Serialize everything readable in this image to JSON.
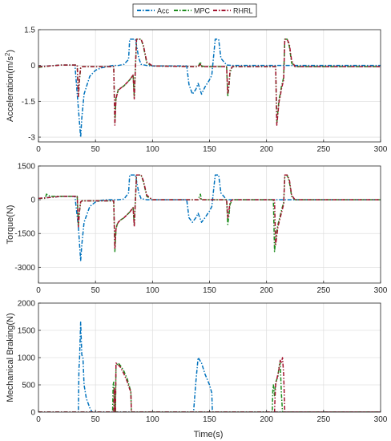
{
  "legend": {
    "items": [
      {
        "label": "Acc",
        "color": "#0072BD",
        "dash": "5,2,1.5,2"
      },
      {
        "label": "MPC",
        "color": "#1E8C1E",
        "dash": "5,2,1.5,2"
      },
      {
        "label": "RHRL",
        "color": "#A2142F",
        "dash": "5,2,1.5,2"
      }
    ]
  },
  "xlabel": "Time(s)",
  "chart_data": [
    {
      "type": "line",
      "title": "",
      "xlabel": "",
      "ylabel": "Acceleration(m/s²)",
      "ylabel_main": "Acceleration(m/s",
      "ylabel_sup": "2",
      "ylabel_tail": ")",
      "xlim": [
        0,
        300
      ],
      "ylim": [
        -3.2,
        1.5
      ],
      "xticks": [
        0,
        50,
        100,
        150,
        200,
        250,
        300
      ],
      "yticks": [
        -3,
        -1.5,
        0,
        1.5
      ],
      "ytick_labels": [
        "-3",
        "-1.5",
        "0",
        "1.5"
      ],
      "grid": true,
      "series": [
        {
          "name": "Acc",
          "x": [
            0,
            20,
            32,
            35,
            37,
            38,
            40,
            45,
            50,
            55,
            60,
            65,
            70,
            75,
            79,
            80,
            82,
            85,
            88,
            90,
            95,
            100,
            110,
            125,
            130,
            132,
            135,
            138,
            140,
            143,
            146,
            150,
            152,
            155,
            158,
            160,
            165,
            170,
            175,
            200,
            300
          ],
          "y": [
            -0.05,
            0.02,
            0.02,
            -1.8,
            -3.0,
            -2.2,
            -1.2,
            -0.45,
            -0.2,
            -0.1,
            -0.05,
            0,
            0,
            0.05,
            0.25,
            1.1,
            1.1,
            1.1,
            0.3,
            0.05,
            0,
            -0.02,
            -0.02,
            -0.02,
            -0.02,
            -0.8,
            -1.2,
            -1.0,
            -0.75,
            -1.2,
            -0.9,
            -0.6,
            -0.4,
            1.1,
            1.1,
            0.3,
            0.02,
            0,
            0,
            0,
            0
          ]
        },
        {
          "name": "MPC",
          "x": [
            0,
            10,
            20,
            30,
            34,
            35,
            36,
            37,
            38,
            40,
            60,
            66,
            67,
            68,
            69,
            70,
            72,
            75,
            78,
            80,
            83,
            84,
            86,
            90,
            92,
            95,
            100,
            140,
            142,
            143,
            146,
            150,
            160,
            165,
            166,
            167,
            168,
            170,
            172,
            175,
            180,
            200,
            208,
            209,
            210,
            211,
            212,
            213,
            214,
            215,
            216,
            218,
            220,
            222,
            225,
            235,
            300
          ],
          "y": [
            -0.08,
            -0.02,
            0.02,
            0.02,
            0.02,
            -1.3,
            -0.6,
            -0.1,
            -0.05,
            -0.05,
            -0.05,
            -0.05,
            -2.4,
            -1.3,
            -1.2,
            -1.0,
            -0.95,
            -0.85,
            -0.7,
            -0.6,
            -0.4,
            -1.3,
            1.1,
            1.1,
            0.8,
            0.1,
            -0.02,
            -0.05,
            0.15,
            -0.02,
            -0.05,
            -0.05,
            -0.05,
            -0.05,
            -1.3,
            -0.9,
            -0.3,
            -0.05,
            -0.05,
            -0.05,
            -0.05,
            -0.05,
            -0.05,
            -2.4,
            -1.9,
            -1.4,
            -1.2,
            -0.9,
            -0.7,
            -0.5,
            1.1,
            1.1,
            0.8,
            0.1,
            -0.05,
            -0.05,
            -0.05
          ]
        },
        {
          "name": "RHRL",
          "x": [
            0,
            10,
            20,
            30,
            34,
            35,
            36,
            37,
            38,
            40,
            60,
            66,
            67,
            68,
            69,
            70,
            72,
            75,
            78,
            80,
            83,
            84,
            86,
            90,
            92,
            95,
            100,
            140,
            142,
            143,
            146,
            150,
            160,
            165,
            166,
            167,
            168,
            170,
            172,
            175,
            180,
            200,
            208,
            209,
            210,
            211,
            212,
            213,
            214,
            215,
            216,
            218,
            220,
            222,
            225,
            235,
            300
          ],
          "y": [
            -0.05,
            -0.02,
            0.02,
            0.02,
            0.02,
            -1.3,
            -0.5,
            -0.1,
            -0.05,
            -0.05,
            -0.05,
            -0.05,
            -2.5,
            -1.4,
            -1.2,
            -1.05,
            -0.95,
            -0.85,
            -0.7,
            -0.6,
            -0.4,
            -1.4,
            1.1,
            1.1,
            0.85,
            0.15,
            -0.02,
            -0.05,
            0.05,
            -0.05,
            -0.05,
            -0.05,
            -0.05,
            -0.05,
            -1.2,
            -0.8,
            -0.2,
            -0.05,
            -0.05,
            -0.05,
            -0.05,
            -0.05,
            -0.05,
            -2.5,
            -2.0,
            -1.5,
            -1.3,
            -1.0,
            -0.8,
            -0.6,
            1.1,
            1.1,
            0.9,
            0.2,
            -0.05,
            -0.05,
            -0.05
          ]
        }
      ]
    },
    {
      "type": "line",
      "title": "",
      "xlabel": "",
      "ylabel": "Torque(N)",
      "xlim": [
        0,
        300
      ],
      "ylim": [
        -3700,
        1500
      ],
      "xticks": [
        0,
        50,
        100,
        150,
        200,
        250,
        300
      ],
      "yticks": [
        -3000,
        -1500,
        0,
        1500
      ],
      "ytick_labels": [
        "-3000",
        "-1500",
        "0",
        "1500"
      ],
      "grid": true,
      "series": [
        {
          "name": "Acc",
          "x": [
            0,
            20,
            32,
            35,
            37,
            38,
            40,
            45,
            50,
            55,
            60,
            65,
            70,
            75,
            79,
            80,
            82,
            85,
            88,
            90,
            95,
            100,
            110,
            125,
            130,
            132,
            135,
            138,
            140,
            143,
            146,
            150,
            152,
            155,
            158,
            160,
            165,
            170,
            175,
            200,
            300
          ],
          "y": [
            60,
            150,
            150,
            -1200,
            -2700,
            -2000,
            -1000,
            -300,
            -100,
            -30,
            0,
            0,
            0,
            30,
            300,
            1100,
            1100,
            1100,
            300,
            50,
            0,
            0,
            0,
            0,
            0,
            -800,
            -1000,
            -800,
            -600,
            -1000,
            -800,
            -500,
            -300,
            1100,
            1100,
            300,
            0,
            0,
            0,
            0,
            0
          ]
        },
        {
          "name": "MPC",
          "x": [
            0,
            6,
            7,
            9,
            10,
            20,
            30,
            34,
            35,
            36,
            37,
            38,
            40,
            60,
            66,
            67,
            68,
            69,
            70,
            72,
            75,
            78,
            80,
            83,
            84,
            86,
            90,
            92,
            95,
            100,
            140,
            142,
            143,
            146,
            150,
            160,
            165,
            166,
            167,
            168,
            170,
            172,
            175,
            180,
            200,
            206,
            207,
            208,
            209,
            210,
            211,
            212,
            213,
            214,
            215,
            216,
            218,
            220,
            222,
            225,
            235,
            300
          ],
          "y": [
            60,
            60,
            250,
            200,
            150,
            150,
            150,
            150,
            -1100,
            -500,
            -100,
            -50,
            -50,
            -50,
            -50,
            -2300,
            -1300,
            -1100,
            -1000,
            -900,
            -800,
            -650,
            -550,
            -350,
            -1100,
            1100,
            1100,
            800,
            150,
            0,
            0,
            250,
            0,
            0,
            0,
            0,
            0,
            -1100,
            -700,
            -200,
            0,
            0,
            0,
            0,
            0,
            0,
            -2300,
            -1800,
            -1400,
            -1100,
            -900,
            -700,
            -500,
            -300,
            -150,
            1000,
            1100,
            800,
            150,
            0,
            0,
            0
          ]
        },
        {
          "name": "RHRL",
          "x": [
            0,
            10,
            20,
            30,
            34,
            35,
            36,
            37,
            38,
            40,
            60,
            66,
            67,
            68,
            69,
            70,
            72,
            75,
            78,
            80,
            83,
            84,
            86,
            90,
            92,
            95,
            100,
            140,
            142,
            143,
            146,
            150,
            160,
            165,
            166,
            167,
            168,
            170,
            172,
            175,
            180,
            200,
            207,
            208,
            209,
            210,
            211,
            212,
            213,
            214,
            215,
            216,
            218,
            220,
            222,
            225,
            235,
            300
          ],
          "y": [
            60,
            100,
            150,
            150,
            150,
            -1200,
            -500,
            -100,
            -50,
            -50,
            -50,
            -50,
            -2200,
            -1300,
            -1100,
            -1000,
            -900,
            -800,
            -650,
            -550,
            -350,
            -1200,
            1100,
            1100,
            850,
            200,
            0,
            0,
            50,
            0,
            0,
            0,
            0,
            0,
            -800,
            -500,
            -100,
            0,
            0,
            0,
            0,
            0,
            0,
            -2000,
            -1600,
            -1200,
            -1000,
            -800,
            -600,
            -400,
            -200,
            1100,
            1100,
            900,
            200,
            0,
            0,
            0
          ]
        }
      ]
    },
    {
      "type": "line",
      "title": "",
      "xlabel": "Time(s)",
      "ylabel": "Mechanical Braking(N)",
      "xlim": [
        0,
        300
      ],
      "ylim": [
        0,
        2000
      ],
      "xticks": [
        0,
        50,
        100,
        150,
        200,
        250,
        300
      ],
      "yticks": [
        0,
        500,
        1000,
        1500,
        2000
      ],
      "ytick_labels": [
        "0",
        "500",
        "1000",
        "1500",
        "2000"
      ],
      "grid": true,
      "series": [
        {
          "name": "Acc",
          "x": [
            0,
            35,
            35.5,
            36,
            37,
            38,
            39,
            40,
            42,
            45,
            47,
            300,
            300
          ],
          "y": [
            0,
            0,
            800,
            950,
            1650,
            1050,
            1000,
            500,
            250,
            80,
            0,
            0,
            0
          ],
          "x2": [
            0,
            136,
            138,
            140,
            143,
            146,
            150,
            152,
            152.5,
            300
          ],
          "y2": [
            0,
            0,
            550,
            1000,
            900,
            700,
            500,
            350,
            0,
            0
          ]
        },
        {
          "name": "MPC",
          "x": [
            0,
            65,
            65.5,
            66,
            67,
            67.5,
            68,
            70,
            72,
            75,
            78,
            80,
            81,
            81.5,
            82,
            300
          ],
          "y": [
            0,
            0,
            500,
            550,
            0,
            0,
            850,
            900,
            850,
            750,
            600,
            450,
            380,
            0,
            0,
            0
          ],
          "x2": [
            0,
            205,
            205.5,
            206,
            207,
            208,
            209,
            210,
            211,
            212,
            213,
            214,
            300
          ],
          "y2": [
            0,
            0,
            400,
            500,
            300,
            550,
            600,
            650,
            850,
            900,
            350,
            0,
            0
          ]
        },
        {
          "name": "RHRL",
          "x": [
            0,
            66,
            66.5,
            67,
            67.5,
            68,
            70,
            72,
            75,
            78,
            80,
            81,
            81.5,
            82,
            300
          ],
          "y": [
            0,
            0,
            450,
            0,
            0,
            900,
            870,
            820,
            700,
            550,
            420,
            380,
            0,
            0,
            0
          ],
          "x2": [
            0,
            207,
            207.5,
            208,
            209,
            210,
            211,
            212,
            213,
            214,
            215,
            216,
            300
          ],
          "y2": [
            0,
            0,
            300,
            500,
            600,
            700,
            800,
            950,
            900,
            1000,
            700,
            0,
            0
          ]
        }
      ]
    }
  ]
}
